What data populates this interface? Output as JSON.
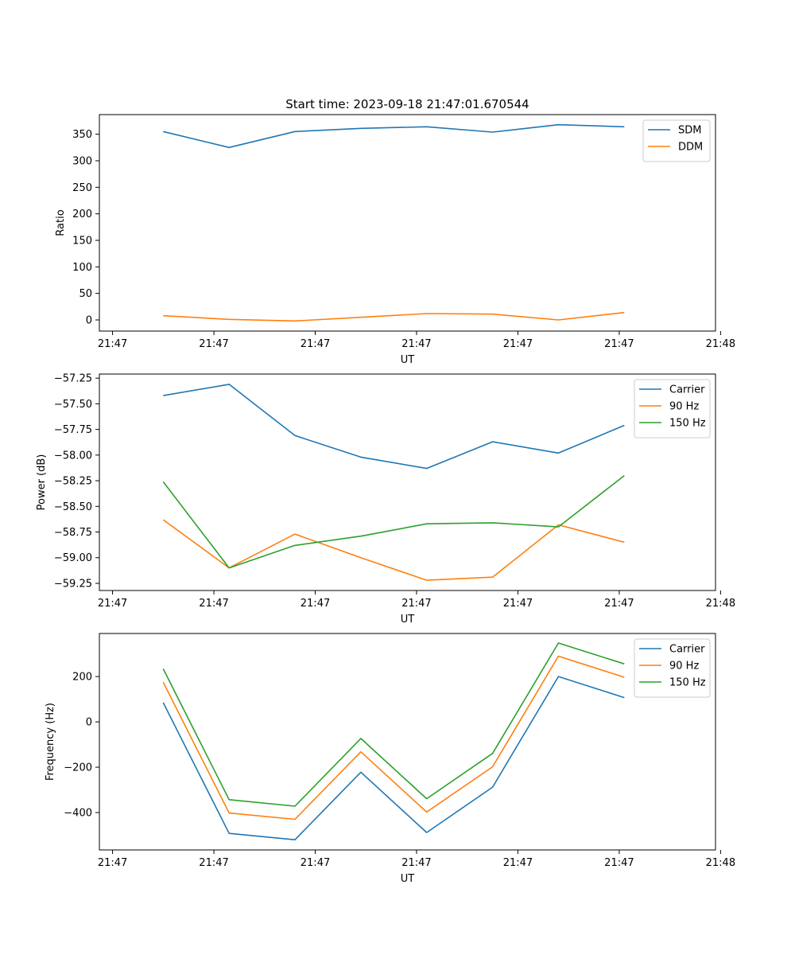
{
  "figure_title": "Start time: 2023-09-18 21:47:01.670544",
  "chart_data": [
    {
      "type": "line",
      "id": "ratio",
      "title": "Start time: 2023-09-18 21:47:01.670544",
      "xlabel": "UT",
      "ylabel": "Ratio",
      "xtick_labels": [
        "21:47",
        "21:47",
        "21:47",
        "21:47",
        "21:47",
        "21:47",
        "21:48"
      ],
      "xlim": [
        -0.13,
        5.95
      ],
      "x": [
        0.5,
        1.15,
        1.8,
        2.45,
        3.1,
        3.75,
        4.4,
        5.05
      ],
      "ylim": [
        -21,
        387
      ],
      "yticks": [
        0,
        50,
        100,
        150,
        200,
        250,
        300,
        350
      ],
      "ytick_labels": [
        "0",
        "50",
        "100",
        "150",
        "200",
        "250",
        "300",
        "350"
      ],
      "legend_position": "top-right",
      "series": [
        {
          "name": "SDM",
          "color": "#1f77b4",
          "values": [
            355,
            325,
            355,
            361,
            364,
            354,
            368,
            364
          ]
        },
        {
          "name": "DDM",
          "color": "#ff7f0e",
          "values": [
            8,
            1,
            -2,
            5,
            12,
            11,
            0,
            14
          ]
        }
      ]
    },
    {
      "type": "line",
      "id": "power",
      "xlabel": "UT",
      "ylabel": "Power (dB)",
      "xtick_labels": [
        "21:47",
        "21:47",
        "21:47",
        "21:47",
        "21:47",
        "21:47",
        "21:48"
      ],
      "xlim": [
        -0.13,
        5.95
      ],
      "x": [
        0.5,
        1.15,
        1.8,
        2.45,
        3.1,
        3.75,
        4.4,
        5.05
      ],
      "ylim": [
        -59.32,
        -57.21
      ],
      "yticks": [
        -57.25,
        -57.5,
        -57.75,
        -58.0,
        -58.25,
        -58.5,
        -58.75,
        -59.0,
        -59.25
      ],
      "ytick_labels": [
        "−57.25",
        "−57.50",
        "−57.75",
        "−58.00",
        "−58.25",
        "−58.50",
        "−58.75",
        "−59.00",
        "−59.25"
      ],
      "legend_position": "top-right",
      "series": [
        {
          "name": "Carrier",
          "color": "#1f77b4",
          "values": [
            -57.42,
            -57.31,
            -57.81,
            -58.02,
            -58.13,
            -57.87,
            -57.98,
            -57.71
          ]
        },
        {
          "name": "90 Hz",
          "color": "#ff7f0e",
          "values": [
            -58.63,
            -59.1,
            -58.77,
            -59.0,
            -59.22,
            -59.19,
            -58.68,
            -58.85
          ]
        },
        {
          "name": "150 Hz",
          "color": "#2ca02c",
          "values": [
            -58.26,
            -59.1,
            -58.88,
            -58.79,
            -58.67,
            -58.66,
            -58.7,
            -58.2
          ]
        }
      ]
    },
    {
      "type": "line",
      "id": "frequency",
      "xlabel": "UT",
      "ylabel": "Frequency (Hz)",
      "xtick_labels": [
        "21:47",
        "21:47",
        "21:47",
        "21:47",
        "21:47",
        "21:47",
        "21:48"
      ],
      "xlim": [
        -0.13,
        5.95
      ],
      "x": [
        0.5,
        1.15,
        1.8,
        2.45,
        3.1,
        3.75,
        4.4,
        5.05
      ],
      "ylim": [
        -565,
        390
      ],
      "yticks": [
        -400,
        -200,
        0,
        200
      ],
      "ytick_labels": [
        "−400",
        "−200",
        "0",
        "200"
      ],
      "legend_position": "top-right",
      "series": [
        {
          "name": "Carrier",
          "color": "#1f77b4",
          "values": [
            85,
            -492,
            -520,
            -222,
            -488,
            -288,
            200,
            107
          ]
        },
        {
          "name": "90 Hz",
          "color": "#ff7f0e",
          "values": [
            175,
            -402,
            -430,
            -132,
            -398,
            -198,
            290,
            197
          ]
        },
        {
          "name": "150 Hz",
          "color": "#2ca02c",
          "values": [
            234,
            -343,
            -372,
            -73,
            -339,
            -139,
            348,
            256
          ]
        }
      ]
    }
  ]
}
